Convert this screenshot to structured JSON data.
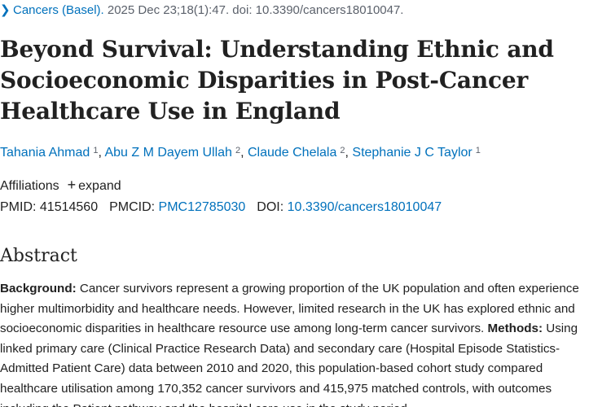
{
  "citation": {
    "journal": "Cancers (Basel).",
    "details": " 2025 Dec 23;18(1):47. doi: 10.3390/cancers18010047."
  },
  "article": {
    "title": "Beyond Survival: Understanding Ethnic and Socioeconomic Disparities in Post-Cancer Healthcare Use in England",
    "authors": [
      {
        "name": "Tahania Ahmad",
        "aff": "1",
        "sep": ", "
      },
      {
        "name": "Abu Z M Dayem Ullah",
        "aff": "2",
        "sep": ", "
      },
      {
        "name": "Claude Chelala",
        "aff": "2",
        "sep": ", "
      },
      {
        "name": "Stephanie J C Taylor",
        "aff": "1",
        "sep": ""
      }
    ],
    "affiliations_label": "Affiliations",
    "expand_label": "expand",
    "ids": {
      "pmid_label": "PMID:",
      "pmid": "41514560",
      "pmcid_label": "PMCID:",
      "pmcid": "PMC12785030",
      "doi_label": "DOI:",
      "doi": "10.3390/cancers18010047"
    }
  },
  "abstract": {
    "heading": "Abstract",
    "background_label": "Background:",
    "background_text": " Cancer survivors represent a growing proportion of the UK population and often experience higher multimorbidity and healthcare needs. However, limited research in the UK has explored ethnic and socioeconomic disparities in healthcare resource use among long-term cancer survivors.",
    "methods_label": "Methods:",
    "methods_text": " Using linked primary care (Clinical Practice Research Data) and secondary care (Hospital Episode Statistics-Admitted Patient Care) data between 2010 and 2020, this population-based cohort study compared healthcare utilisation among 170,352 cancer survivors and 415,975 matched controls, with outcomes including the Patient pathway and the hospital care use in the study period."
  }
}
